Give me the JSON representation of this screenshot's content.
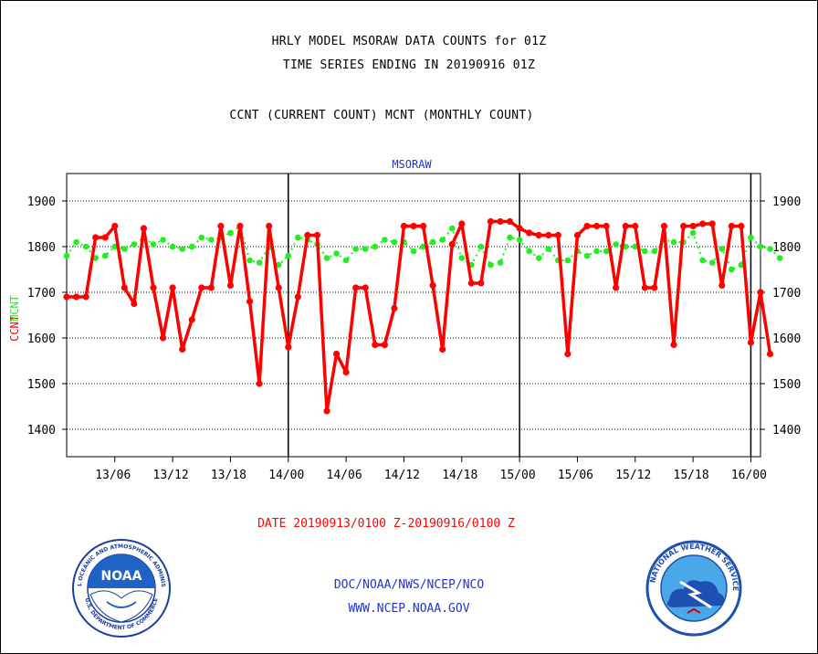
{
  "header": {
    "line1": "HRLY MODEL MSORAW DATA COUNTS for 01Z",
    "line2": "TIME SERIES ENDING IN 20190916 01Z",
    "line3": "CCNT (CURRENT COUNT) MCNT (MONTHLY COUNT)"
  },
  "chart_data": {
    "type": "line",
    "title": "MSORAW",
    "ylabel_left_primary": "CCNT",
    "ylabel_left_secondary": "MCNT",
    "xlabel": "DATE 20190913/0100 Z-20190916/0100 Z",
    "ylim": [
      1340,
      1960
    ],
    "yticks": [
      1400,
      1500,
      1600,
      1700,
      1800,
      1900
    ],
    "xlim": [
      1,
      73
    ],
    "xticks": [
      {
        "hour": 6,
        "label": "13/06"
      },
      {
        "hour": 12,
        "label": "13/12"
      },
      {
        "hour": 18,
        "label": "13/18"
      },
      {
        "hour": 24,
        "label": "14/00"
      },
      {
        "hour": 30,
        "label": "14/06"
      },
      {
        "hour": 36,
        "label": "14/12"
      },
      {
        "hour": 42,
        "label": "14/18"
      },
      {
        "hour": 48,
        "label": "15/00"
      },
      {
        "hour": 54,
        "label": "15/06"
      },
      {
        "hour": 60,
        "label": "15/12"
      },
      {
        "hour": 66,
        "label": "15/18"
      },
      {
        "hour": 72,
        "label": "16/00"
      }
    ],
    "day_boundaries": [
      24,
      48,
      72
    ],
    "grid": true,
    "colors": {
      "ccnt": "#ff0000",
      "mcnt": "#22ee22",
      "title": "#2233cc",
      "axes": "#000000"
    },
    "series": [
      {
        "name": "CCNT",
        "values": [
          1690,
          1690,
          1690,
          1820,
          1820,
          1845,
          1710,
          1675,
          1840,
          1710,
          1600,
          1710,
          1575,
          1640,
          1710,
          1710,
          1845,
          1715,
          1845,
          1680,
          1500,
          1845,
          1710,
          1580,
          1690,
          1825,
          1825,
          1440,
          1565,
          1525,
          1710,
          1710,
          1585,
          1585,
          1665,
          1845,
          1845,
          1845,
          1715,
          1575,
          1805,
          1850,
          1720,
          1720,
          1855,
          1855,
          1855,
          1840,
          1830,
          1825,
          1825,
          1825,
          1565,
          1825,
          1845,
          1845,
          1845,
          1710,
          1845,
          1845,
          1710,
          1710,
          1845,
          1585,
          1845,
          1845,
          1850,
          1850,
          1715,
          1845,
          1845,
          1590,
          1700,
          1565
        ]
      },
      {
        "name": "MCNT",
        "values": [
          1780,
          1810,
          1800,
          1775,
          1780,
          1800,
          1795,
          1805,
          1820,
          1805,
          1815,
          1800,
          1795,
          1800,
          1820,
          1815,
          1820,
          1830,
          1845,
          1770,
          1765,
          1800,
          1760,
          1780,
          1820,
          1815,
          1805,
          1775,
          1785,
          1770,
          1795,
          1795,
          1800,
          1815,
          1810,
          1810,
          1790,
          1800,
          1810,
          1815,
          1840,
          1775,
          1760,
          1800,
          1760,
          1765,
          1820,
          1815,
          1790,
          1775,
          1795,
          1770,
          1770,
          1790,
          1780,
          1790,
          1790,
          1805,
          1800,
          1800,
          1790,
          1790,
          1815,
          1810,
          1810,
          1830,
          1770,
          1765,
          1795,
          1750,
          1760,
          1820,
          1800,
          1795,
          1775
        ]
      }
    ]
  },
  "footer": {
    "line1": "DOC/NOAA/NWS/NCEP/NCO",
    "line2": "WWW.NCEP.NOAA.GOV"
  },
  "logos": {
    "noaa_text": "NOAA",
    "noaa_ring_top": "NATIONAL OCEANIC AND ATMOSPHERIC ADMINISTRATION",
    "noaa_ring_bottom": "U.S. DEPARTMENT OF COMMERCE",
    "nws_ring": "NATIONAL WEATHER SERVICE"
  }
}
